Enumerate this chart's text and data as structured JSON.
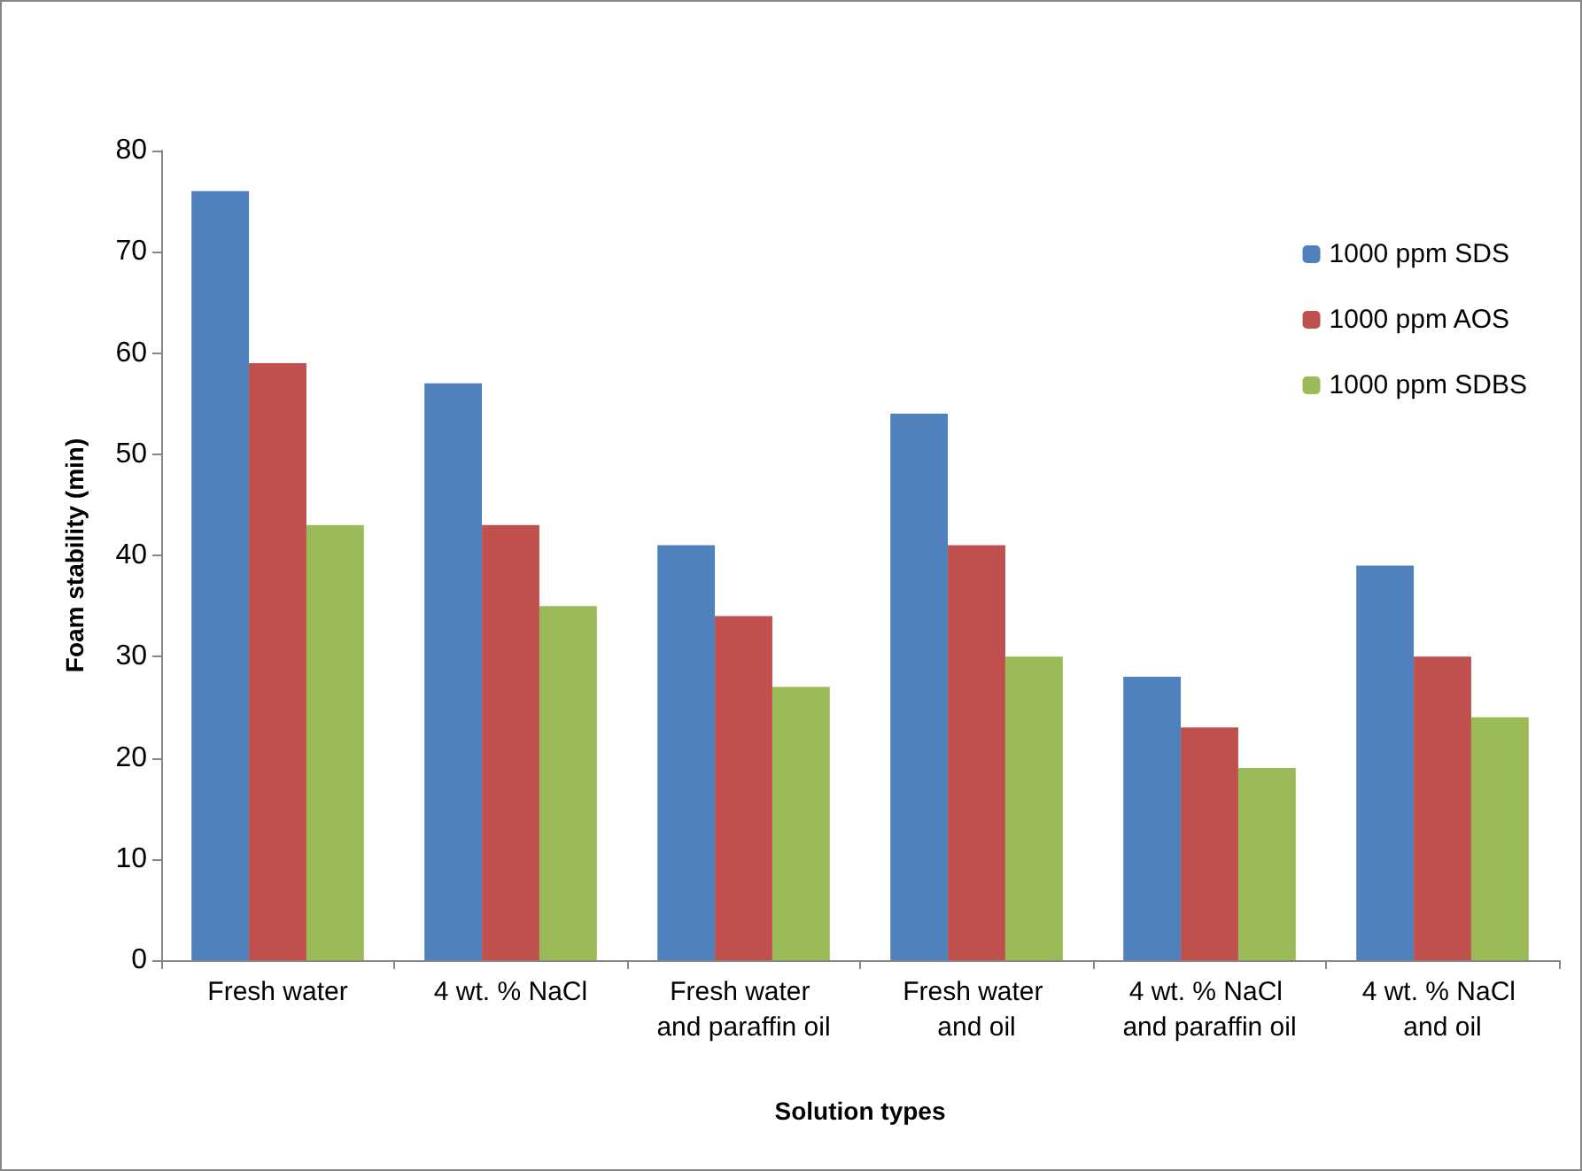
{
  "chart_data": {
    "type": "bar",
    "xlabel": "Solution types",
    "ylabel": "Foam stability (min)",
    "categories": [
      "Fresh water",
      "4 wt. % NaCl",
      "Fresh water and paraffin oil",
      "Fresh water and oil",
      "4 wt. % NaCl and paraffin oil",
      "4 wt. % NaCl and oil"
    ],
    "series": [
      {
        "name": "1000 ppm SDS",
        "color": "#4f81bd",
        "values": [
          76,
          57,
          41,
          54,
          28,
          39
        ]
      },
      {
        "name": "1000 ppm AOS",
        "color": "#c0504d",
        "values": [
          59,
          43,
          34,
          41,
          23,
          30
        ]
      },
      {
        "name": "1000 ppm SDBS",
        "color": "#9bbb59",
        "values": [
          43,
          35,
          27,
          30,
          19,
          24
        ]
      }
    ],
    "ylim": [
      0,
      80
    ],
    "yticks": [
      0,
      10,
      20,
      30,
      40,
      50,
      60,
      70,
      80
    ],
    "grid": false,
    "legend": "top right"
  }
}
